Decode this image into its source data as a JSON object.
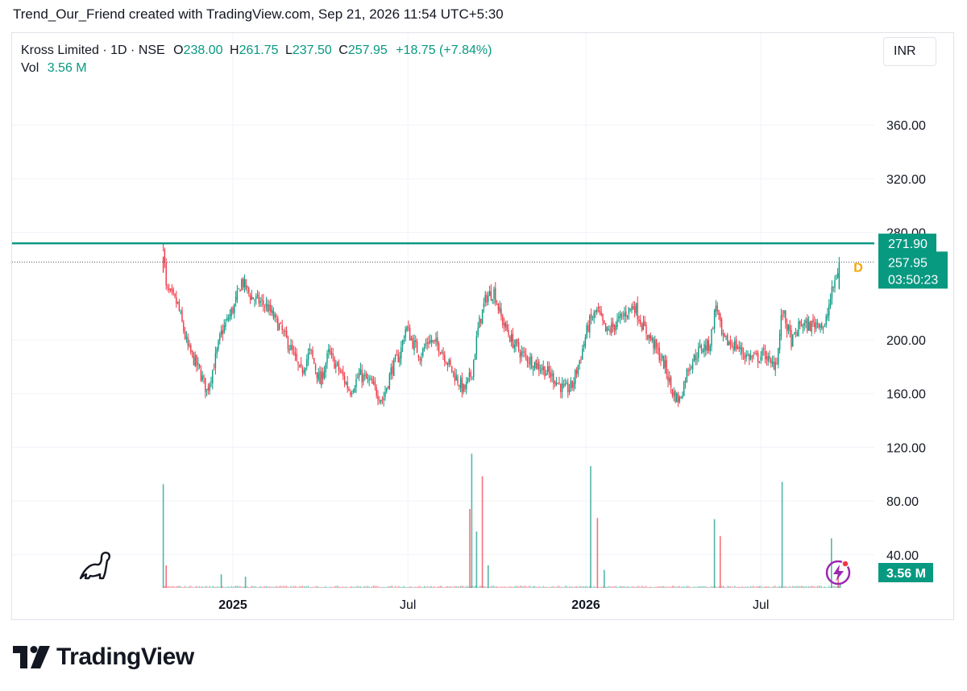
{
  "header": {
    "title": "Trend_Our_Friend created with TradingView.com, Sep 21, 2026 11:54 UTC+5:30"
  },
  "legend": {
    "symbol": "Kross Limited · 1D · NSE",
    "open_label": "O",
    "open": "238.00",
    "high_label": "H",
    "high": "261.75",
    "low_label": "L",
    "low": "237.50",
    "close_label": "C",
    "close": "257.95",
    "change": "+18.75 (+7.84%)",
    "vol_label": "Vol",
    "vol": "3.56 M"
  },
  "currency": "INR",
  "footer": {
    "brand": "TradingView"
  },
  "colors": {
    "up": "#089981",
    "down": "#f23645",
    "resistance": "#089981",
    "text": "#131722"
  },
  "chart_data": {
    "type": "candlestick",
    "y_axis_ticks": [
      "360.00",
      "320.00",
      "280.00",
      "200.00",
      "160.00",
      "120.00",
      "80.00",
      "40.00"
    ],
    "x_axis_ticks": [
      "2025",
      "Jul",
      "2026",
      "Jul"
    ],
    "ylim": [
      14,
      400
    ],
    "resistance_level": 271.9,
    "resistance_label": "271.90",
    "last_price": 257.95,
    "last_price_label": "257.95",
    "countdown_label": "03:50:23",
    "volume_label": "3.56 M",
    "dividend_marker": "D",
    "price_path": [
      [
        "2024-10-21",
        272
      ],
      [
        "2024-10-24",
        238
      ],
      [
        "2024-11-05",
        226
      ],
      [
        "2024-11-15",
        195
      ],
      [
        "2024-11-28",
        176
      ],
      [
        "2024-12-05",
        162
      ],
      [
        "2024-12-12",
        180
      ],
      [
        "2024-12-20",
        205
      ],
      [
        "2025-01-03",
        226
      ],
      [
        "2025-01-10",
        244
      ],
      [
        "2025-01-20",
        232
      ],
      [
        "2025-02-05",
        225
      ],
      [
        "2025-02-18",
        210
      ],
      [
        "2025-03-01",
        195
      ],
      [
        "2025-03-12",
        175
      ],
      [
        "2025-03-22",
        192
      ],
      [
        "2025-04-01",
        168
      ],
      [
        "2025-04-10",
        190
      ],
      [
        "2025-04-22",
        176
      ],
      [
        "2025-05-02",
        162
      ],
      [
        "2025-05-12",
        174
      ],
      [
        "2025-05-23",
        168
      ],
      [
        "2025-06-05",
        155
      ],
      [
        "2025-06-14",
        178
      ],
      [
        "2025-06-23",
        190
      ],
      [
        "2025-06-29",
        210
      ],
      [
        "2025-07-06",
        198
      ],
      [
        "2025-07-14",
        188
      ],
      [
        "2025-07-22",
        200
      ],
      [
        "2025-08-03",
        195
      ],
      [
        "2025-08-15",
        178
      ],
      [
        "2025-08-28",
        162
      ],
      [
        "2025-09-05",
        175
      ],
      [
        "2025-09-12",
        210
      ],
      [
        "2025-09-20",
        232
      ],
      [
        "2025-09-28",
        236
      ],
      [
        "2025-10-06",
        215
      ],
      [
        "2025-10-16",
        200
      ],
      [
        "2025-10-26",
        190
      ],
      [
        "2025-11-06",
        184
      ],
      [
        "2025-11-19",
        178
      ],
      [
        "2025-12-01",
        170
      ],
      [
        "2025-12-10",
        162
      ],
      [
        "2025-12-18",
        166
      ],
      [
        "2025-12-26",
        186
      ],
      [
        "2026-01-04",
        212
      ],
      [
        "2026-01-13",
        222
      ],
      [
        "2026-01-22",
        205
      ],
      [
        "2026-02-01",
        212
      ],
      [
        "2026-02-11",
        220
      ],
      [
        "2026-02-20",
        226
      ],
      [
        "2026-03-01",
        210
      ],
      [
        "2026-03-13",
        196
      ],
      [
        "2026-03-24",
        180
      ],
      [
        "2026-04-01",
        160
      ],
      [
        "2026-04-08",
        155
      ],
      [
        "2026-04-17",
        180
      ],
      [
        "2026-04-30",
        194
      ],
      [
        "2026-05-09",
        196
      ],
      [
        "2026-05-16",
        228
      ],
      [
        "2026-05-22",
        200
      ],
      [
        "2026-06-05",
        196
      ],
      [
        "2026-06-16",
        188
      ],
      [
        "2026-06-26",
        186
      ],
      [
        "2026-07-06",
        190
      ],
      [
        "2026-07-11",
        180
      ],
      [
        "2026-07-18",
        186
      ],
      [
        "2026-07-23",
        222
      ],
      [
        "2026-08-02",
        198
      ],
      [
        "2026-08-11",
        212
      ],
      [
        "2026-08-20",
        210
      ],
      [
        "2026-08-30",
        214
      ],
      [
        "2026-09-05",
        208
      ],
      [
        "2026-09-10",
        228
      ],
      [
        "2026-09-16",
        245
      ],
      [
        "2026-09-21",
        258
      ]
    ],
    "volume_spikes_millions": [
      [
        "2024-10-21",
        92
      ],
      [
        "2024-10-24",
        20
      ],
      [
        "2024-12-20",
        12
      ],
      [
        "2025-01-14",
        10
      ],
      [
        "2025-09-03",
        70
      ],
      [
        "2025-09-05",
        119
      ],
      [
        "2025-09-10",
        50
      ],
      [
        "2025-09-16",
        99
      ],
      [
        "2025-09-22",
        20
      ],
      [
        "2026-01-06",
        108
      ],
      [
        "2026-01-13",
        62
      ],
      [
        "2026-01-20",
        16
      ],
      [
        "2026-05-14",
        61
      ],
      [
        "2026-05-20",
        46
      ],
      [
        "2026-07-23",
        94
      ],
      [
        "2026-09-12",
        44
      ],
      [
        "2026-09-19",
        16
      ],
      [
        "2026-09-21",
        3.56
      ]
    ]
  }
}
